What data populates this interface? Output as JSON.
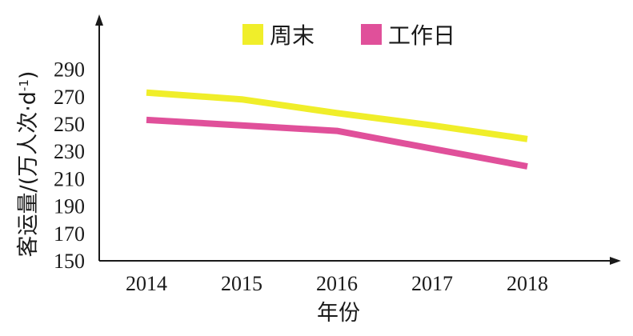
{
  "chart_data": {
    "type": "line",
    "x": [
      "2014",
      "2015",
      "2016",
      "2017",
      "2018"
    ],
    "xlabel": "年份",
    "ylabel_main": "客运量/(万人次·d",
    "ylabel_sup": "-1",
    "ylabel_close": ")",
    "ylim": [
      150,
      300
    ],
    "yticks": [
      "150",
      "170",
      "190",
      "210",
      "230",
      "250",
      "270",
      "290"
    ],
    "grid": false,
    "legend_position": "top-center",
    "series": [
      {
        "name": "周末",
        "color": "#f0ee2a",
        "values": [
          273,
          268,
          258,
          249,
          239
        ]
      },
      {
        "name": "工作日",
        "color": "#e0509a",
        "values": [
          253,
          249,
          245,
          232,
          219
        ]
      }
    ]
  }
}
